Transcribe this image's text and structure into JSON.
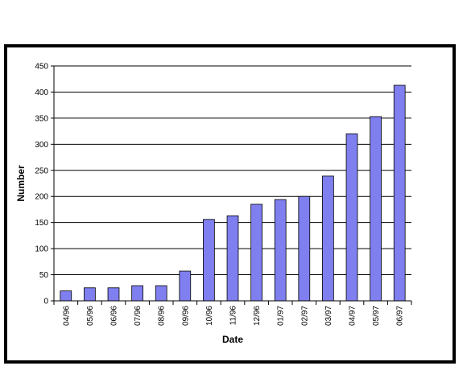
{
  "chart_data": {
    "type": "bar",
    "x_label": "Date",
    "y_label": "Number",
    "categories": [
      "04/96",
      "05/96",
      "06/96",
      "07/96",
      "08/96",
      "09/96",
      "10/96",
      "11/96",
      "12/96",
      "01/97",
      "02/97",
      "03/97",
      "04/97",
      "05/97",
      "06/97"
    ],
    "values": [
      19,
      25,
      25,
      29,
      29,
      57,
      156,
      163,
      185,
      194,
      200,
      239,
      320,
      353,
      413
    ],
    "color": "#7f7fef",
    "ylim": [
      0,
      450
    ],
    "yticks": [
      0,
      50,
      100,
      150,
      200,
      250,
      300,
      350,
      400,
      450
    ],
    "grid": true
  }
}
